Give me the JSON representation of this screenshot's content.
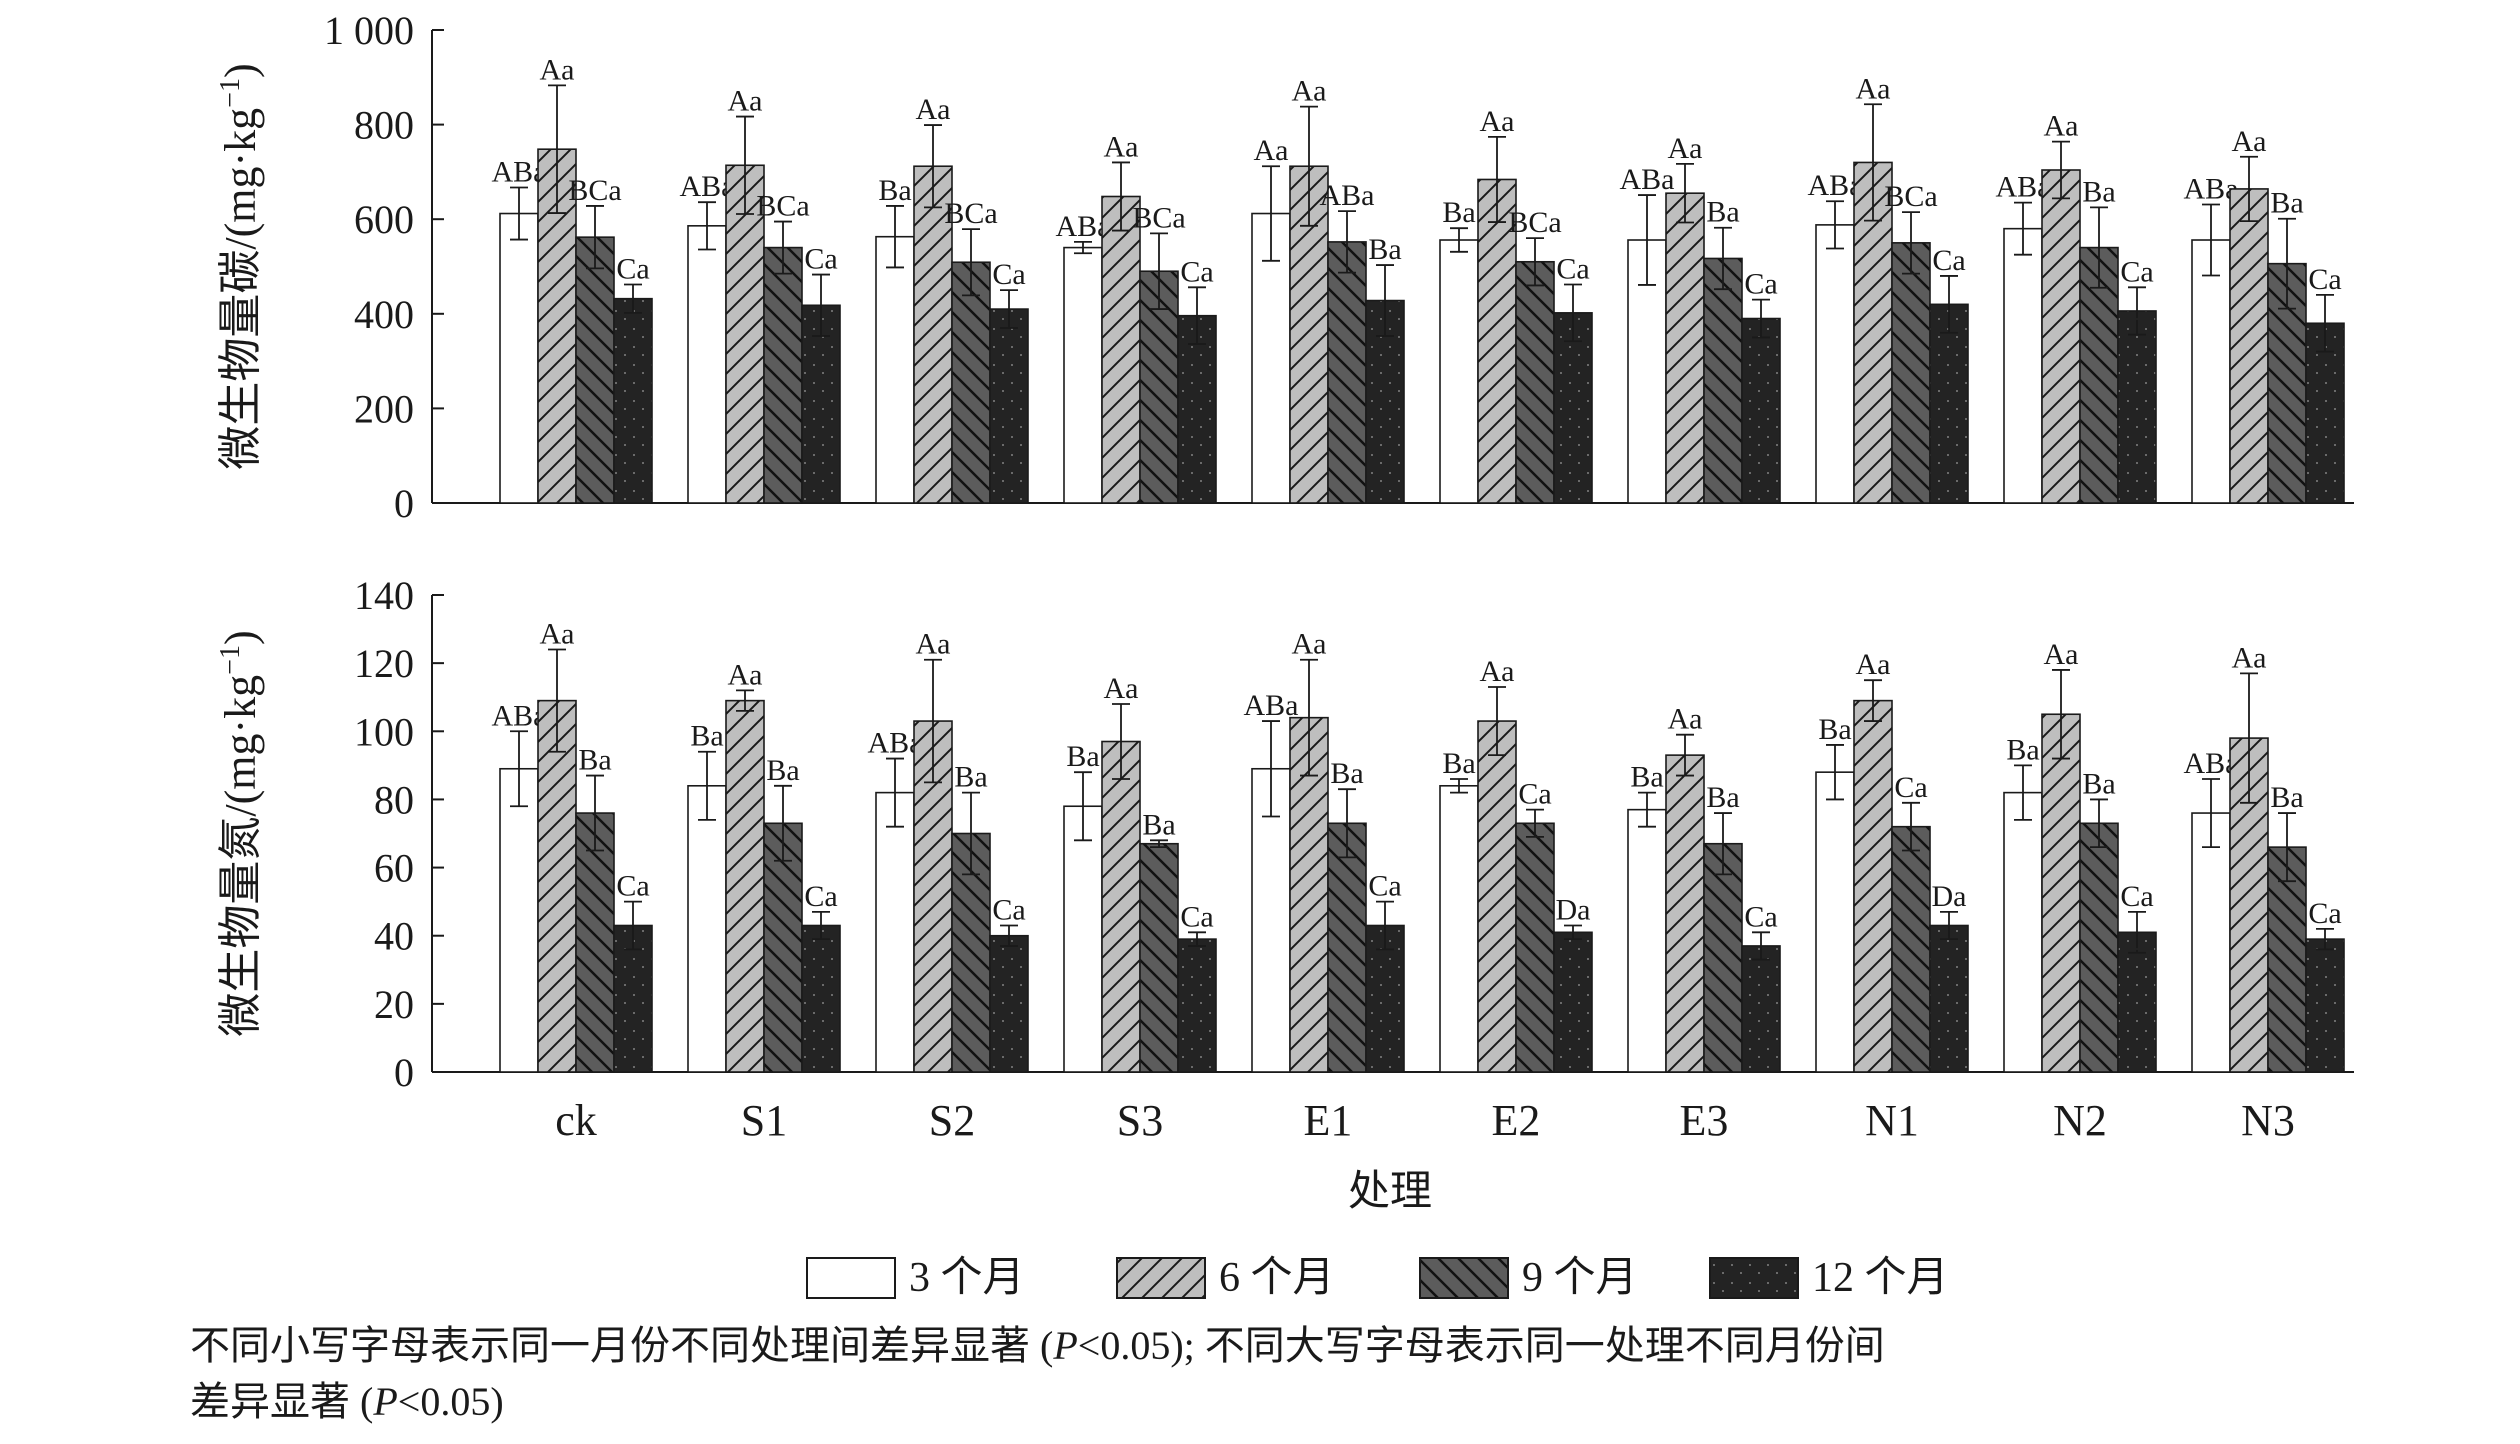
{
  "chart_data": [
    {
      "type": "bar",
      "ylabel": "微生物量碳/(mg·kg⁻¹)",
      "ylabel_parts": {
        "main": "微生物量碳/(mg·kg",
        "sup": "−1",
        "close": ")"
      },
      "ylim": [
        0,
        1000
      ],
      "yticks": [
        "0",
        "200",
        "400",
        "600",
        "800",
        "1 000"
      ],
      "ytick_values": [
        0,
        200,
        400,
        600,
        800,
        1000
      ],
      "categories": [
        "ck",
        "S1",
        "S2",
        "S3",
        "E1",
        "E2",
        "E3",
        "N1",
        "N2",
        "N3"
      ],
      "series": [
        {
          "name": "3 个月",
          "values": [
            612,
            586,
            563,
            540,
            612,
            556,
            556,
            588,
            580,
            556
          ],
          "errors": [
            55,
            50,
            65,
            12,
            100,
            25,
            95,
            50,
            55,
            75
          ],
          "labels": [
            "ABa",
            "ABa",
            "Ba",
            "ABa",
            "Aa",
            "Ba",
            "ABa",
            "ABa",
            "ABa",
            "ABa"
          ]
        },
        {
          "name": "6 个月",
          "values": [
            748,
            714,
            712,
            648,
            712,
            684,
            655,
            720,
            704,
            664
          ],
          "errors": [
            135,
            103,
            87,
            72,
            126,
            90,
            62,
            123,
            60,
            68
          ],
          "labels": [
            "Aa",
            "Aa",
            "Aa",
            "Aa",
            "Aa",
            "Aa",
            "Aa",
            "Aa",
            "Aa",
            "Aa"
          ]
        },
        {
          "name": "9 个月",
          "values": [
            562,
            540,
            509,
            490,
            552,
            510,
            517,
            550,
            540,
            506
          ],
          "errors": [
            66,
            55,
            70,
            80,
            65,
            50,
            65,
            65,
            85,
            95
          ],
          "labels": [
            "BCa",
            "BCa",
            "BCa",
            "BCa",
            "ABa",
            "BCa",
            "Ba",
            "BCa",
            "Ba",
            "Ba"
          ]
        },
        {
          "name": "12 个月",
          "values": [
            432,
            418,
            410,
            396,
            428,
            402,
            390,
            420,
            406,
            380
          ],
          "errors": [
            30,
            65,
            40,
            60,
            75,
            60,
            40,
            60,
            50,
            60
          ],
          "labels": [
            "Ca",
            "Ca",
            "Ca",
            "Ca",
            "Ba",
            "Ca",
            "Ca",
            "Ca",
            "Ca",
            "Ca"
          ]
        }
      ]
    },
    {
      "type": "bar",
      "ylabel": "微生物量氮/(mg·kg⁻¹)",
      "ylabel_parts": {
        "main": "微生物量氮/(mg·kg",
        "sup": "−1",
        "close": ")"
      },
      "ylim": [
        0,
        140
      ],
      "yticks": [
        "0",
        "20",
        "40",
        "60",
        "80",
        "100",
        "120",
        "140"
      ],
      "ytick_values": [
        0,
        20,
        40,
        60,
        80,
        100,
        120,
        140
      ],
      "xlabel": "处理",
      "categories": [
        "ck",
        "S1",
        "S2",
        "S3",
        "E1",
        "E2",
        "E3",
        "N1",
        "N2",
        "N3"
      ],
      "series": [
        {
          "name": "3 个月",
          "values": [
            89,
            84,
            82,
            78,
            89,
            84,
            77,
            88,
            82,
            76
          ],
          "errors": [
            11,
            10,
            10,
            10,
            14,
            2,
            5,
            8,
            8,
            10
          ],
          "labels": [
            "ABa",
            "Ba",
            "ABa",
            "Ba",
            "ABa",
            "Ba",
            "Ba",
            "Ba",
            "Ba",
            "ABa"
          ]
        },
        {
          "name": "6 个月",
          "values": [
            109,
            109,
            103,
            97,
            104,
            103,
            93,
            109,
            105,
            98
          ],
          "errors": [
            15,
            3,
            18,
            11,
            17,
            10,
            6,
            6,
            13,
            19
          ],
          "labels": [
            "Aa",
            "Aa",
            "Aa",
            "Aa",
            "Aa",
            "Aa",
            "Aa",
            "Aa",
            "Aa",
            "Aa"
          ]
        },
        {
          "name": "9 个月",
          "values": [
            76,
            73,
            70,
            67,
            73,
            73,
            67,
            72,
            73,
            66
          ],
          "errors": [
            11,
            11,
            12,
            1,
            10,
            4,
            9,
            7,
            7,
            10
          ],
          "labels": [
            "Ba",
            "Ba",
            "Ba",
            "Ba",
            "Ba",
            "Ca",
            "Ba",
            "Ca",
            "Ba",
            "Ba"
          ]
        },
        {
          "name": "12 个月",
          "values": [
            43,
            43,
            40,
            39,
            43,
            41,
            37,
            43,
            41,
            39
          ],
          "errors": [
            7,
            4,
            3,
            2,
            7,
            2,
            4,
            4,
            6,
            3
          ],
          "labels": [
            "Ca",
            "Ca",
            "Ca",
            "Ca",
            "Ca",
            "Da",
            "Ca",
            "Da",
            "Ca",
            "Ca"
          ]
        }
      ]
    }
  ],
  "legend": [
    {
      "label": "3 个月",
      "fill": "#ffffff",
      "pattern": "none"
    },
    {
      "label": "6 个月",
      "fill": "#bebebe",
      "pattern": "diagonal-up"
    },
    {
      "label": "9 个月",
      "fill": "#5c5c5c",
      "pattern": "diagonal-down"
    },
    {
      "label": "12 个月",
      "fill": "#232323",
      "pattern": "dots"
    }
  ],
  "caption": {
    "line1_a": "不同小写字母表示同一月份不同处理间差异显著 (",
    "p": "P",
    "line1_b": "<0.05); 不同大写字母表示同一处理不同月份间",
    "line2_a": "差异显著 (",
    "line2_b": "<0.05)"
  }
}
